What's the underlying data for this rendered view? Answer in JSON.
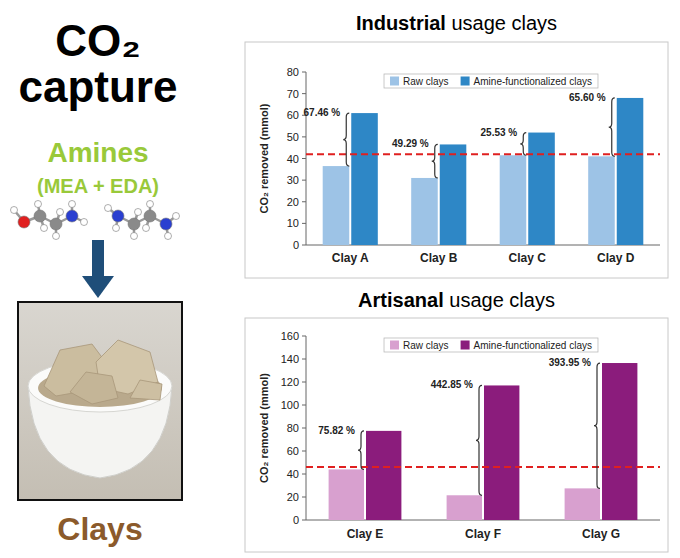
{
  "header": {
    "title": "CO₂ capture",
    "amines": "Amines",
    "amine_names": "(MEA + EDA)",
    "material": "Clays"
  },
  "chart_data": [
    {
      "type": "bar",
      "title": "Industrial usage clays",
      "y_label": "CO₂ removed (mmol)",
      "categories": [
        "Clay A",
        "Clay B",
        "Clay C",
        "Clay D"
      ],
      "series": [
        {
          "name": "Raw clays",
          "color": "#9dc3e6",
          "values": [
            36.5,
            31,
            41.5,
            41
          ]
        },
        {
          "name": "Amine-functionalized clays",
          "color": "#2e87c6",
          "values": [
            61,
            46.5,
            52,
            68
          ]
        }
      ],
      "annotations": [
        "67.46 %",
        "49.29 %",
        "25.53 %",
        "65.60 %"
      ],
      "reference_line": 42,
      "ylim": [
        0,
        80
      ],
      "yticks": [
        0,
        10,
        20,
        30,
        40,
        50,
        60,
        70,
        80
      ],
      "grid": false,
      "legend": "top"
    },
    {
      "type": "bar",
      "title": "Artisanal usage clays",
      "y_label": "CO₂ removed (mmol)",
      "categories": [
        "Clay E",
        "Clay F",
        "Clay G"
      ],
      "series": [
        {
          "name": "Raw clays",
          "color": "#d8a0cf",
          "values": [
            44,
            21.5,
            27.5
          ]
        },
        {
          "name": "Amine-functionalized clays",
          "color": "#8b1c7c",
          "values": [
            77.5,
            117,
            136.5
          ]
        }
      ],
      "annotations": [
        "75.82 %",
        "442.85 %",
        "393.95 %"
      ],
      "reference_line": 46,
      "ylim": [
        0,
        160
      ],
      "yticks": [
        0,
        20,
        40,
        60,
        80,
        100,
        120,
        140,
        160
      ],
      "grid": false,
      "legend": "top"
    }
  ]
}
